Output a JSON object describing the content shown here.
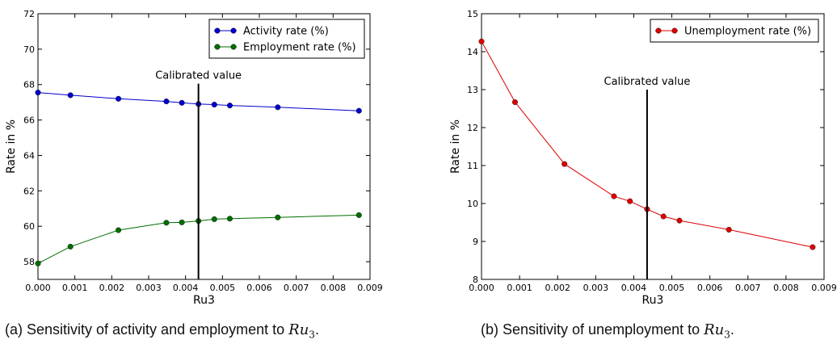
{
  "chart_data": [
    {
      "type": "line",
      "panel": "a",
      "xlabel": "Ru3",
      "ylabel": "Rate in %",
      "xlim": [
        0,
        0.009
      ],
      "ylim": [
        57,
        72
      ],
      "xticks": [
        "0.000",
        "0.001",
        "0.002",
        "0.003",
        "0.004",
        "0.005",
        "0.006",
        "0.007",
        "0.008",
        "0.009"
      ],
      "yticks": [
        "58",
        "60",
        "62",
        "64",
        "66",
        "68",
        "70",
        "72"
      ],
      "legend_position": "top-right",
      "x": [
        0,
        0.00088,
        0.00218,
        0.00348,
        0.0039,
        0.00435,
        0.00478,
        0.0052,
        0.0065,
        0.0087
      ],
      "series": [
        {
          "name": "Activity rate (%)",
          "color": "#0000cc",
          "values": [
            67.55,
            67.4,
            67.2,
            67.05,
            66.97,
            66.9,
            66.87,
            66.82,
            66.72,
            66.52
          ]
        },
        {
          "name": "Employment rate (%)",
          "color": "#006e00",
          "values": [
            57.9,
            58.85,
            59.78,
            60.2,
            60.22,
            60.3,
            60.4,
            60.43,
            60.5,
            60.63
          ]
        }
      ],
      "annotation": {
        "label": "Calibrated value",
        "x": 0.00435,
        "y_from": 57,
        "y_to": 68.05
      },
      "caption_prefix": "(a) Sensitivity of activity and employment to ",
      "caption_math": "Ru",
      "caption_sub": "3",
      "caption_suffix": "."
    },
    {
      "type": "line",
      "panel": "b",
      "xlabel": "Ru3",
      "ylabel": "Rate in %",
      "xlim": [
        0,
        0.009
      ],
      "ylim": [
        8,
        15
      ],
      "xticks": [
        "0.000",
        "0.001",
        "0.002",
        "0.003",
        "0.004",
        "0.005",
        "0.006",
        "0.007",
        "0.008",
        "0.009"
      ],
      "yticks": [
        "8",
        "9",
        "10",
        "11",
        "12",
        "13",
        "14",
        "15"
      ],
      "legend_position": "top-right",
      "x": [
        0,
        0.00088,
        0.00218,
        0.00348,
        0.0039,
        0.00435,
        0.00478,
        0.0052,
        0.0065,
        0.0087
      ],
      "series": [
        {
          "name": "Unemployment rate (%)",
          "color": "#dd0000",
          "values": [
            14.27,
            12.67,
            11.04,
            10.19,
            10.06,
            9.85,
            9.66,
            9.55,
            9.31,
            8.85
          ]
        }
      ],
      "annotation": {
        "label": "Calibrated value",
        "x": 0.00435,
        "y_from": 8,
        "y_to": 13.0
      },
      "caption_prefix": "(b) Sensitivity of unemployment to ",
      "caption_math": "Ru",
      "caption_sub": "3",
      "caption_suffix": "."
    }
  ]
}
